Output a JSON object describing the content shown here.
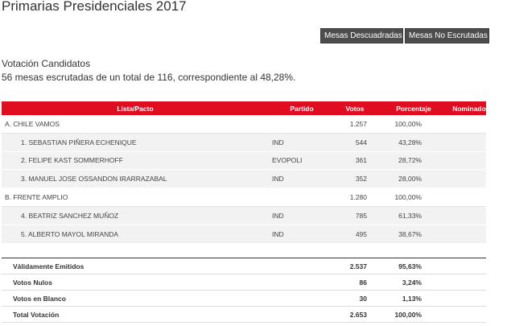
{
  "page": {
    "title": "Primarias Presidenciales 2017"
  },
  "buttons": {
    "mesas_descuadradas": "Mesas Descuadradas",
    "mesas_no_escrutadas": "Mesas No Escrutadas"
  },
  "section": {
    "title": "Votación Candidatos",
    "summary": "56 mesas escrutadas de un total de 116, correspondiente al 48,28%."
  },
  "table": {
    "headers": [
      "Lista/Pacto",
      "Partido",
      "Votos",
      "Porcentaje",
      "Nominado"
    ],
    "rows": [
      {
        "kind": "pact",
        "name": "A. CHILE VAMOS",
        "party": "",
        "votes": "1.257",
        "pct": "100,00%"
      },
      {
        "kind": "cand",
        "name": "1. SEBASTIAN PIÑERA ECHENIQUE",
        "party": "IND",
        "votes": "544",
        "pct": "43,28%"
      },
      {
        "kind": "cand",
        "name": "2. FELIPE KAST SOMMERHOFF",
        "party": "EVOPOLI",
        "votes": "361",
        "pct": "28,72%"
      },
      {
        "kind": "cand",
        "name": "3. MANUEL JOSE OSSANDON IRARRAZABAL",
        "party": "IND",
        "votes": "352",
        "pct": "28,00%"
      },
      {
        "kind": "pact",
        "name": "B. FRENTE AMPLIO",
        "party": "",
        "votes": "1.280",
        "pct": "100,00%"
      },
      {
        "kind": "cand",
        "name": "4. BEATRIZ SANCHEZ MUÑOZ",
        "party": "IND",
        "votes": "785",
        "pct": "61,33%"
      },
      {
        "kind": "cand",
        "name": "5. ALBERTO MAYOL MIRANDA",
        "party": "IND",
        "votes": "495",
        "pct": "38,67%"
      }
    ]
  },
  "totals": [
    {
      "label": "Válidamente Emitidos",
      "votes": "2.537",
      "pct": "95,63%"
    },
    {
      "label": "Votos Nulos",
      "votes": "86",
      "pct": "3,24%"
    },
    {
      "label": "Votos en Blanco",
      "votes": "30",
      "pct": "1,13%"
    },
    {
      "label": "Total Votación",
      "votes": "2.653",
      "pct": "100,00%"
    }
  ],
  "colors": {
    "header_red": "#e00d21",
    "button_gray": "#4d4d4d",
    "row_gray": "#f2f2f2"
  }
}
